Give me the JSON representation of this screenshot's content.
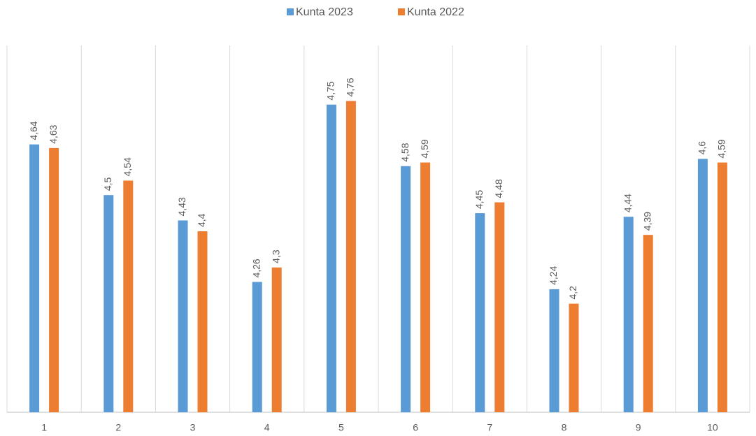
{
  "chart_data": {
    "type": "bar",
    "categories": [
      "1",
      "2",
      "3",
      "4",
      "5",
      "6",
      "7",
      "8",
      "9",
      "10"
    ],
    "series": [
      {
        "name": "Kunta 2023",
        "color": "#5b9bd5",
        "values": [
          4.64,
          4.5,
          4.43,
          4.26,
          4.75,
          4.58,
          4.45,
          4.24,
          4.44,
          4.6
        ],
        "value_labels": [
          "4,64",
          "4,5",
          "4,43",
          "4,26",
          "4,75",
          "4,58",
          "4,45",
          "4,24",
          "4,44",
          "4,6"
        ]
      },
      {
        "name": "Kunta 2022",
        "color": "#ed7d31",
        "values": [
          4.63,
          4.54,
          4.4,
          4.3,
          4.76,
          4.59,
          4.48,
          4.2,
          4.39,
          4.59
        ],
        "value_labels": [
          "4,63",
          "4,54",
          "4,4",
          "4,3",
          "4,76",
          "4,59",
          "4,48",
          "4,2",
          "4,39",
          "4,59"
        ]
      }
    ],
    "ylim": [
      3.9,
      4.9
    ],
    "legend": "top"
  }
}
